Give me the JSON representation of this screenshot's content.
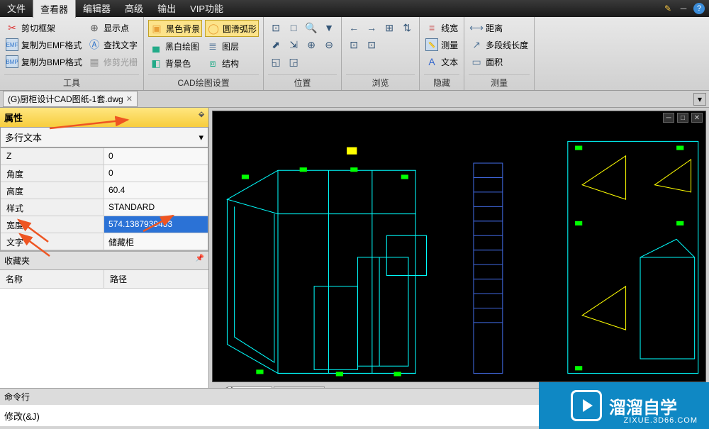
{
  "menubar": {
    "items": [
      "文件",
      "查看器",
      "编辑器",
      "高级",
      "输出",
      "VIP功能"
    ],
    "activeIndex": 1
  },
  "ribbon": {
    "groups": [
      {
        "title": "工具",
        "cols": [
          [
            {
              "icon": "✂",
              "label": "剪切框架",
              "color": "#d33"
            },
            {
              "icon": "EMF",
              "label": "复制为EMF格式",
              "color": "#37c"
            },
            {
              "icon": "BMP",
              "label": "复制为BMP格式",
              "color": "#37c"
            }
          ],
          [
            {
              "icon": "⊕",
              "label": "显示点",
              "color": "#555"
            },
            {
              "icon": "Ⓐ",
              "label": "查找文字",
              "color": "#37c"
            },
            {
              "icon": "▦",
              "label": "修剪光栅",
              "color": "#999",
              "disabled": true
            }
          ]
        ]
      },
      {
        "title": "CAD绘图设置",
        "cols": [
          [
            {
              "icon": "▣",
              "label": "黑色背景",
              "color": "#e8a038",
              "highlight": true
            },
            {
              "icon": "▄",
              "label": "黑白绘图",
              "color": "#2a8"
            },
            {
              "icon": "◧",
              "label": "背景色",
              "color": "#2a8"
            }
          ],
          [
            {
              "icon": "◯",
              "label": "圆滑弧形",
              "color": "#e8a038",
              "highlight": true
            },
            {
              "icon": "≣",
              "label": "图层",
              "color": "#579"
            },
            {
              "icon": "⧈",
              "label": "结构",
              "color": "#2a8"
            }
          ]
        ]
      },
      {
        "title": "位置",
        "iconGrid": [
          [
            "⊡",
            "□",
            "🔍",
            "▼"
          ],
          [
            "⬈",
            "⇲",
            "⊕",
            "⊖"
          ],
          [
            "◱",
            "◲",
            "",
            ""
          ]
        ]
      },
      {
        "title": "浏览",
        "iconGrid": [
          [
            "←",
            "→",
            "⊞",
            "⇅"
          ],
          [
            "⊡",
            "⊡",
            "",
            ""
          ]
        ]
      },
      {
        "title": "隐藏",
        "cols": [
          [
            {
              "icon": "≡",
              "label": "线宽",
              "color": "#c55"
            },
            {
              "icon": "📏",
              "label": "测量",
              "color": "#c55"
            },
            {
              "icon": "A",
              "label": "文本",
              "color": "#36c"
            }
          ]
        ]
      },
      {
        "title": "测量",
        "cols": [
          [
            {
              "icon": "⟷",
              "label": "距离",
              "color": "#579"
            },
            {
              "icon": "↗",
              "label": "多段线长度",
              "color": "#579"
            },
            {
              "icon": "▭",
              "label": "面积",
              "color": "#579"
            }
          ]
        ]
      }
    ]
  },
  "doctab": {
    "label": "(G)厨柜设计CAD图纸-1套.dwg"
  },
  "panels": {
    "properties": {
      "title": "属性",
      "type": "多行文本",
      "rows": [
        {
          "k": "Z",
          "v": "0"
        },
        {
          "k": "角度",
          "v": "0"
        },
        {
          "k": "高度",
          "v": "60.4"
        },
        {
          "k": "样式",
          "v": "STANDARD"
        },
        {
          "k": "宽度",
          "v": "574.1387939453",
          "selected": true
        },
        {
          "k": "文字",
          "v": "储藏柜"
        }
      ]
    },
    "favorites": {
      "title": "收藏夹",
      "cols": [
        "名称",
        "路径"
      ]
    }
  },
  "layoutTabs": {
    "active": "Model",
    "tabs": [
      "Model",
      "Layout1"
    ]
  },
  "command": {
    "title": "命令行",
    "text": "修改(&J)"
  },
  "watermark": {
    "brand": "溜溜自学",
    "url": "ZIXUE.3D66.COM"
  },
  "colors": {
    "cyan": "#00ffff",
    "green": "#00ff00",
    "yellow": "#ffff00",
    "blue": "#4169e1",
    "ribbonHi": "#fce38a",
    "selBlue": "#2b72d6",
    "wm": "#0f88c4"
  }
}
